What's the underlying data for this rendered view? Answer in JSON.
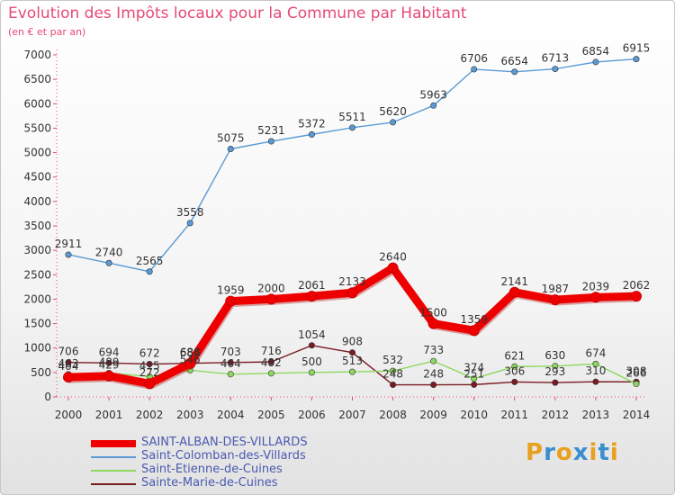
{
  "title": "Evolution des Impôts locaux pour la Commune par Habitant",
  "subtitle": "(en € et par an)",
  "logo": {
    "text": "Proxiti",
    "colors": [
      "#e8a020",
      "#3a8fd0",
      "#e8a020",
      "#3a8fd0",
      "#e8a020",
      "#3a8fd0",
      "#e8a020"
    ]
  },
  "chart_data": {
    "type": "line",
    "title": "Evolution des Impôts locaux pour la Commune par Habitant",
    "xlabel": "",
    "ylabel": "",
    "x": [
      "2000",
      "2001",
      "2002",
      "2003",
      "2004",
      "2005",
      "2006",
      "2007",
      "2008",
      "2009",
      "2010",
      "2011",
      "2012",
      "2013",
      "2014"
    ],
    "ylim": [
      0,
      7000
    ],
    "yticks": [
      0,
      500,
      1000,
      1500,
      2000,
      2500,
      3000,
      3500,
      4000,
      4500,
      5000,
      5500,
      6000,
      6500,
      7000
    ],
    "grid": false,
    "legend_position": "bottom",
    "series": [
      {
        "name": "SAINT-ALBAN-DES-VILLARDS",
        "color": "#ee0000",
        "highlight": true,
        "values": [
          404,
          429,
          272,
          684,
          1959,
          2000,
          2061,
          2133,
          2640,
          1500,
          1359,
          2141,
          1987,
          2039,
          2062
        ],
        "labels": [
          "404",
          "429",
          "272",
          "684",
          "1959",
          "2000",
          "2061",
          "2133",
          "2640",
          "1500",
          "1359",
          "2141",
          "1987",
          "2039",
          "2062"
        ]
      },
      {
        "name": "Saint-Colomban-des-Villards",
        "color": "#5b9bd5",
        "highlight": false,
        "values": [
          2911,
          2740,
          2565,
          3558,
          5075,
          5231,
          5372,
          5511,
          5620,
          5963,
          6706,
          6654,
          6713,
          6854,
          6915
        ],
        "labels": [
          "2911",
          "2740",
          "2565",
          "3558",
          "5075",
          "5231",
          "5372",
          "5511",
          "5620",
          "5963",
          "6706",
          "6654",
          "6713",
          "6854",
          "6915"
        ]
      },
      {
        "name": "Saint-Etienne-de-Cuines",
        "color": "#8ed860",
        "highlight": false,
        "values": [
          463,
          489,
          415,
          546,
          464,
          482,
          500,
          513,
          532,
          733,
          374,
          621,
          630,
          674,
          266
        ],
        "labels": [
          "463",
          "489",
          "415",
          "546",
          "464",
          "482",
          "500",
          "513",
          "532",
          "733",
          "374",
          "621",
          "630",
          "674",
          "266"
        ]
      },
      {
        "name": "Sainte-Marie-de-Cuines",
        "color": "#7a1a22",
        "highlight": false,
        "values": [
          706,
          694,
          672,
          688,
          703,
          716,
          1054,
          908,
          248,
          248,
          251,
          306,
          293,
          310,
          308
        ],
        "labels": [
          "706",
          "694",
          "672",
          "688",
          "703",
          "716",
          "1054",
          "908",
          "248",
          "248",
          "251",
          "306",
          "293",
          "310",
          "308"
        ]
      }
    ]
  }
}
